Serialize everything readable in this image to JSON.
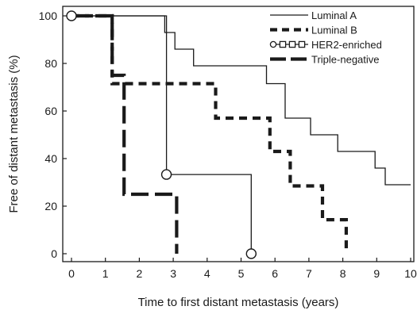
{
  "chart_data": {
    "type": "line",
    "subtype": "kaplan-meier step curve",
    "title": "",
    "xlabel": "Time to first distant metastasis (years)",
    "ylabel": "Free of distant metastasis (%)",
    "xlim": [
      0,
      10
    ],
    "ylim": [
      0,
      100
    ],
    "xticks": [
      0,
      1,
      2,
      3,
      4,
      5,
      6,
      7,
      8,
      9,
      10
    ],
    "yticks": [
      0,
      20,
      40,
      60,
      80,
      100
    ],
    "grid": false,
    "legend_position": "top-right",
    "series": [
      {
        "name": "Luminal A",
        "style": "solid-thin",
        "color": "#1a1a1a",
        "x": [
          0,
          2.75,
          2.75,
          3.05,
          3.05,
          3.6,
          3.6,
          4.3,
          4.3,
          5.75,
          5.75,
          6.3,
          6.3,
          7.05,
          7.05,
          7.85,
          7.85,
          8.95,
          8.95,
          9.25,
          9.25,
          10.0
        ],
        "y": [
          100,
          100,
          93,
          93,
          86,
          86,
          79,
          79,
          79,
          79,
          71.5,
          71.5,
          57,
          57,
          50,
          50,
          43,
          43,
          36,
          36,
          29,
          29
        ]
      },
      {
        "name": "Luminal B",
        "style": "short-dash-thick",
        "color": "#1a1a1a",
        "x": [
          0,
          1.2,
          1.2,
          4.25,
          4.25,
          5.85,
          5.85,
          6.45,
          6.45,
          7.4,
          7.4,
          8.1,
          8.1
        ],
        "y": [
          100,
          100,
          71.5,
          71.5,
          57,
          57,
          43,
          43,
          28.5,
          28.5,
          14.3,
          14.3,
          0
        ]
      },
      {
        "name": "HER2-enriched",
        "style": "thin-with-circle-markers",
        "color": "#1a1a1a",
        "x": [
          0,
          2.8,
          2.8,
          5.3,
          5.3
        ],
        "y": [
          100,
          100,
          33.3,
          33.3,
          0
        ],
        "markers": [
          {
            "x": 0,
            "y": 100
          },
          {
            "x": 2.8,
            "y": 33.3
          },
          {
            "x": 5.3,
            "y": 0
          }
        ]
      },
      {
        "name": "Triple-negative",
        "style": "long-dash-thick",
        "color": "#1a1a1a",
        "x": [
          0,
          1.2,
          1.2,
          1.55,
          1.55,
          3.1,
          3.1
        ],
        "y": [
          100,
          100,
          75,
          75,
          25,
          25,
          0
        ]
      }
    ]
  }
}
